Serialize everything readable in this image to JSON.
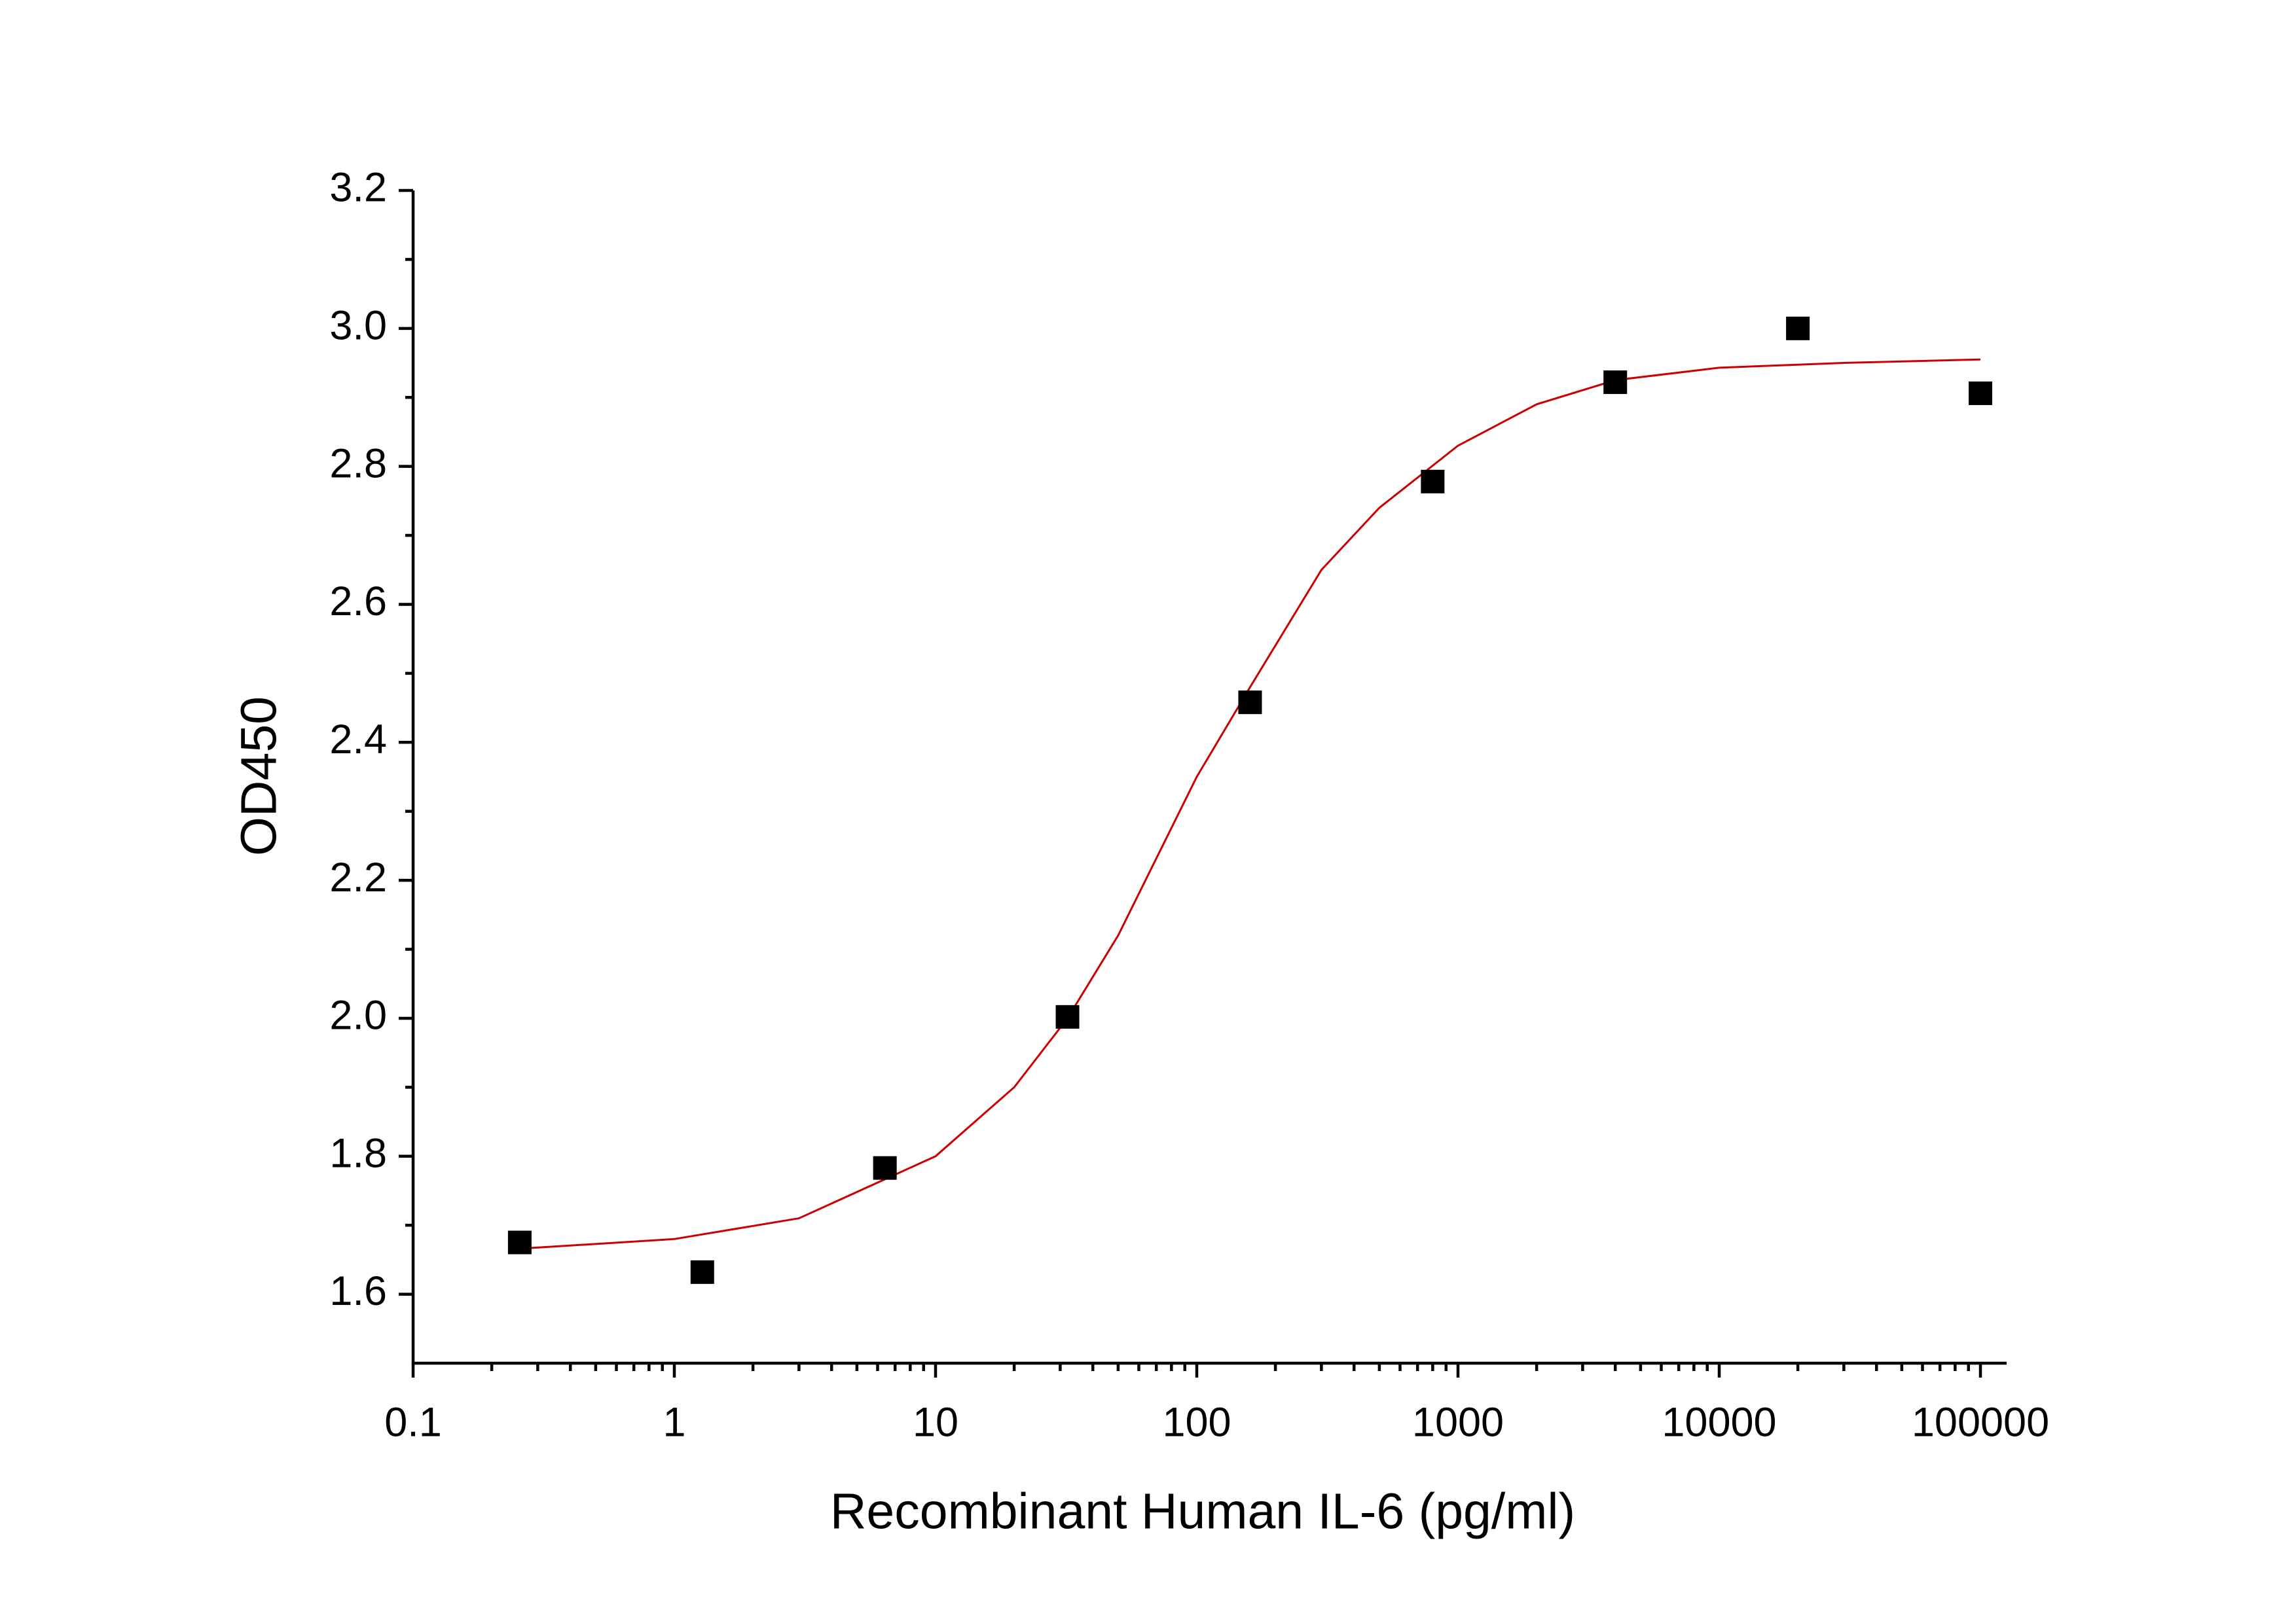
{
  "chart_data": {
    "type": "scatter",
    "x_label": "Recombinant Human IL-6 (pg/ml)",
    "y_label": "OD450",
    "xscale": "log",
    "x": [
      0.256,
      1.28,
      6.4,
      32,
      160,
      800,
      4000,
      20000,
      100000
    ],
    "values": [
      1.675,
      1.632,
      1.783,
      2.002,
      2.458,
      2.778,
      2.922,
      3.0,
      2.906
    ],
    "color": "#000000",
    "fit": {
      "type": "line",
      "color": "#cc0000",
      "x": [
        0.256,
        1,
        3,
        10,
        20,
        32,
        50,
        100,
        160,
        300,
        500,
        1000,
        2000,
        4000,
        10000,
        30000,
        100000
      ],
      "values": [
        1.666,
        1.68,
        1.71,
        1.8,
        1.9,
        2.0,
        2.12,
        2.35,
        2.48,
        2.65,
        2.74,
        2.83,
        2.89,
        2.925,
        2.943,
        2.95,
        2.955
      ]
    },
    "xlim": [
      0.1,
      100000
    ],
    "xticks": [
      0.1,
      1,
      10,
      100,
      1000,
      10000,
      100000
    ],
    "ylim": [
      1.5,
      3.2
    ],
    "yticks": [
      1.6,
      1.8,
      {
        "value": 2,
        "label": "2.0"
      },
      2.2,
      2.4,
      2.6,
      2.8,
      {
        "value": 3,
        "label": "3.0"
      },
      3.2
    ]
  }
}
